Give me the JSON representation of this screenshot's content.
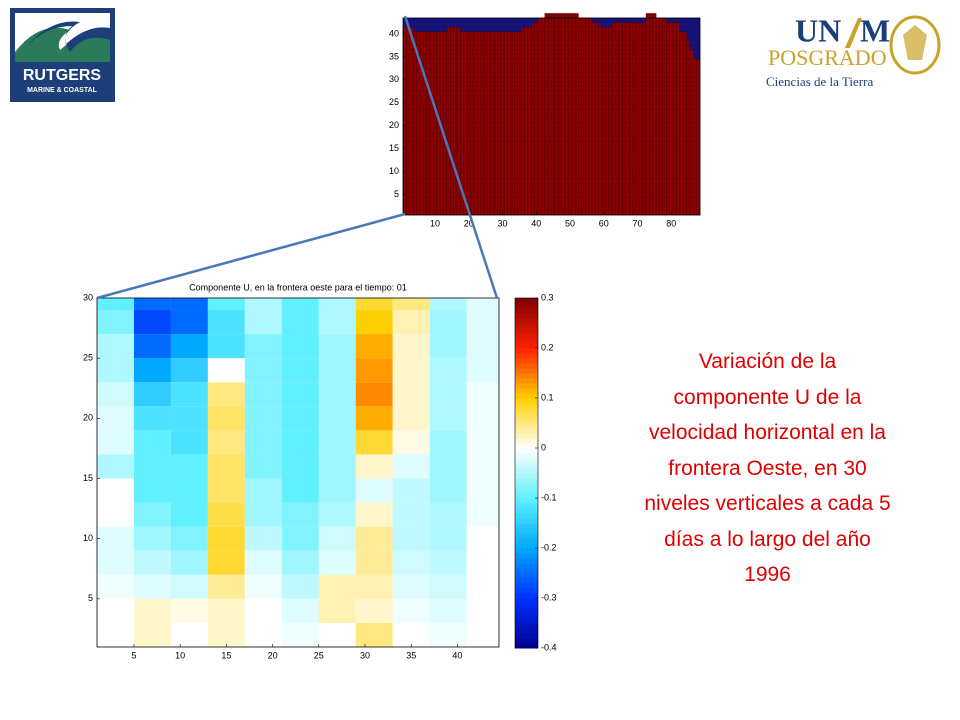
{
  "logos": {
    "rutgers": {
      "name": "RUTGERS",
      "sub": "MARINE & COASTAL"
    },
    "unam": {
      "part1": "UN",
      "part2": "M",
      "program": "POSGRADO",
      "field": "Ciencias de la Tierra"
    }
  },
  "description": {
    "lines": [
      "Variación de la",
      "componente U de la",
      "velocidad horizontal en la",
      "frontera Oeste, en 30",
      "niveles verticales a cada 5",
      "días a lo largo del año",
      "1996"
    ]
  },
  "chart_data": [
    {
      "type": "area",
      "fill_color": "#8b0000",
      "background_color": "#14137a",
      "xlim": [
        0.5,
        88.5
      ],
      "ylim": [
        0.5,
        43.5
      ],
      "xticks": [
        10,
        20,
        30,
        40,
        50,
        60,
        70,
        80
      ],
      "yticks": [
        5,
        10,
        15,
        20,
        25,
        30,
        35,
        40
      ],
      "x": [
        1,
        2,
        3,
        4,
        5,
        6,
        7,
        8,
        9,
        10,
        11,
        12,
        13,
        14,
        15,
        16,
        17,
        18,
        19,
        20,
        21,
        22,
        23,
        24,
        25,
        26,
        27,
        28,
        29,
        30,
        31,
        32,
        33,
        34,
        35,
        36,
        37,
        38,
        39,
        40,
        41,
        42,
        43,
        44,
        45,
        46,
        47,
        48,
        49,
        50,
        51,
        52,
        53,
        54,
        55,
        56,
        57,
        58,
        59,
        60,
        61,
        62,
        63,
        64,
        65,
        66,
        67,
        68,
        69,
        70,
        71,
        72,
        73,
        74,
        75,
        76,
        77,
        78,
        79,
        80,
        81,
        82,
        83,
        84,
        85,
        86,
        87,
        88
      ],
      "values": [
        41,
        41,
        41,
        40,
        40,
        40,
        40,
        40,
        40,
        40,
        40,
        40,
        40,
        41,
        41,
        41,
        41,
        40,
        40,
        40,
        40,
        40,
        40,
        40,
        40,
        40,
        40,
        40,
        40,
        40,
        40,
        40,
        40,
        40,
        40,
        41,
        41,
        41,
        42,
        42,
        43,
        43,
        44,
        44,
        44,
        44,
        44,
        44,
        44,
        44,
        44,
        44,
        43,
        43,
        43,
        43,
        42,
        42,
        41,
        41,
        41,
        41,
        42,
        42,
        42,
        42,
        42,
        42,
        42,
        42,
        42,
        42,
        44,
        44,
        44,
        43,
        43,
        43,
        42,
        42,
        42,
        42,
        40,
        40,
        38,
        36,
        34,
        34
      ]
    },
    {
      "type": "heatmap",
      "title": "Componente U, en la frontera oeste para el tiempo: 01",
      "xlim": [
        1,
        44.5
      ],
      "ylim": [
        1,
        30
      ],
      "xticks": [
        5,
        10,
        15,
        20,
        25,
        30,
        35,
        40
      ],
      "yticks": [
        5,
        10,
        15,
        20,
        25,
        30
      ],
      "x_bins": [
        1,
        5,
        9,
        13,
        17,
        21,
        25,
        29,
        33,
        37,
        41,
        44.5
      ],
      "y_bins": [
        1,
        3,
        5,
        7,
        9,
        11,
        13,
        15,
        17,
        19,
        21,
        23,
        25,
        27,
        29,
        30
      ],
      "z": [
        [
          0,
          0.02,
          0,
          0.02,
          0,
          -0.01,
          0,
          0.05,
          0,
          -0.01,
          0
        ],
        [
          0,
          0.02,
          0.01,
          0.02,
          0,
          -0.02,
          0.03,
          0.02,
          -0.01,
          -0.02,
          0
        ],
        [
          -0.01,
          -0.02,
          -0.03,
          0.04,
          -0.01,
          -0.04,
          0.03,
          0.03,
          -0.02,
          -0.03,
          0
        ],
        [
          -0.02,
          -0.04,
          -0.06,
          0.08,
          -0.02,
          -0.06,
          -0.02,
          0.04,
          -0.03,
          -0.04,
          0
        ],
        [
          -0.02,
          -0.06,
          -0.08,
          0.08,
          -0.04,
          -0.08,
          -0.03,
          0.04,
          -0.04,
          -0.05,
          0
        ],
        [
          0,
          -0.08,
          -0.1,
          0.07,
          -0.06,
          -0.08,
          -0.05,
          0.02,
          -0.04,
          -0.05,
          -0.01
        ],
        [
          0,
          -0.1,
          -0.1,
          0.06,
          -0.06,
          -0.1,
          -0.06,
          -0.02,
          -0.04,
          -0.06,
          -0.01
        ],
        [
          -0.05,
          -0.1,
          -0.1,
          0.06,
          -0.08,
          -0.1,
          -0.06,
          0.02,
          -0.02,
          -0.06,
          -0.01
        ],
        [
          -0.02,
          -0.1,
          -0.12,
          0.05,
          -0.08,
          -0.1,
          -0.06,
          0.08,
          0.01,
          -0.06,
          -0.01
        ],
        [
          -0.02,
          -0.12,
          -0.12,
          0.06,
          -0.08,
          -0.1,
          -0.06,
          0.12,
          0.02,
          -0.05,
          -0.01
        ],
        [
          -0.03,
          -0.15,
          -0.12,
          0.05,
          -0.08,
          -0.1,
          -0.06,
          0.14,
          0.02,
          -0.05,
          -0.01
        ],
        [
          -0.05,
          -0.2,
          -0.15,
          0,
          -0.08,
          -0.1,
          -0.06,
          0.13,
          0.02,
          -0.05,
          -0.02
        ],
        [
          -0.05,
          -0.25,
          -0.2,
          -0.12,
          -0.08,
          -0.1,
          -0.06,
          0.12,
          0.02,
          -0.06,
          -0.02
        ],
        [
          -0.08,
          -0.28,
          -0.25,
          -0.12,
          -0.05,
          -0.1,
          -0.05,
          0.1,
          0.03,
          -0.06,
          -0.02
        ],
        [
          -0.1,
          -0.25,
          -0.25,
          -0.1,
          -0.05,
          -0.1,
          -0.05,
          0.08,
          0.05,
          -0.05,
          -0.02
        ]
      ],
      "clim": [
        -0.4,
        0.3
      ],
      "cticks": [
        -0.4,
        -0.3,
        -0.2,
        -0.1,
        0,
        0.1,
        0.2,
        0.3
      ],
      "colormap": [
        "#00008f",
        "#0030ff",
        "#00a8ff",
        "#60f0ff",
        "#ffffff",
        "#ffd000",
        "#ff2000",
        "#800000"
      ]
    }
  ]
}
